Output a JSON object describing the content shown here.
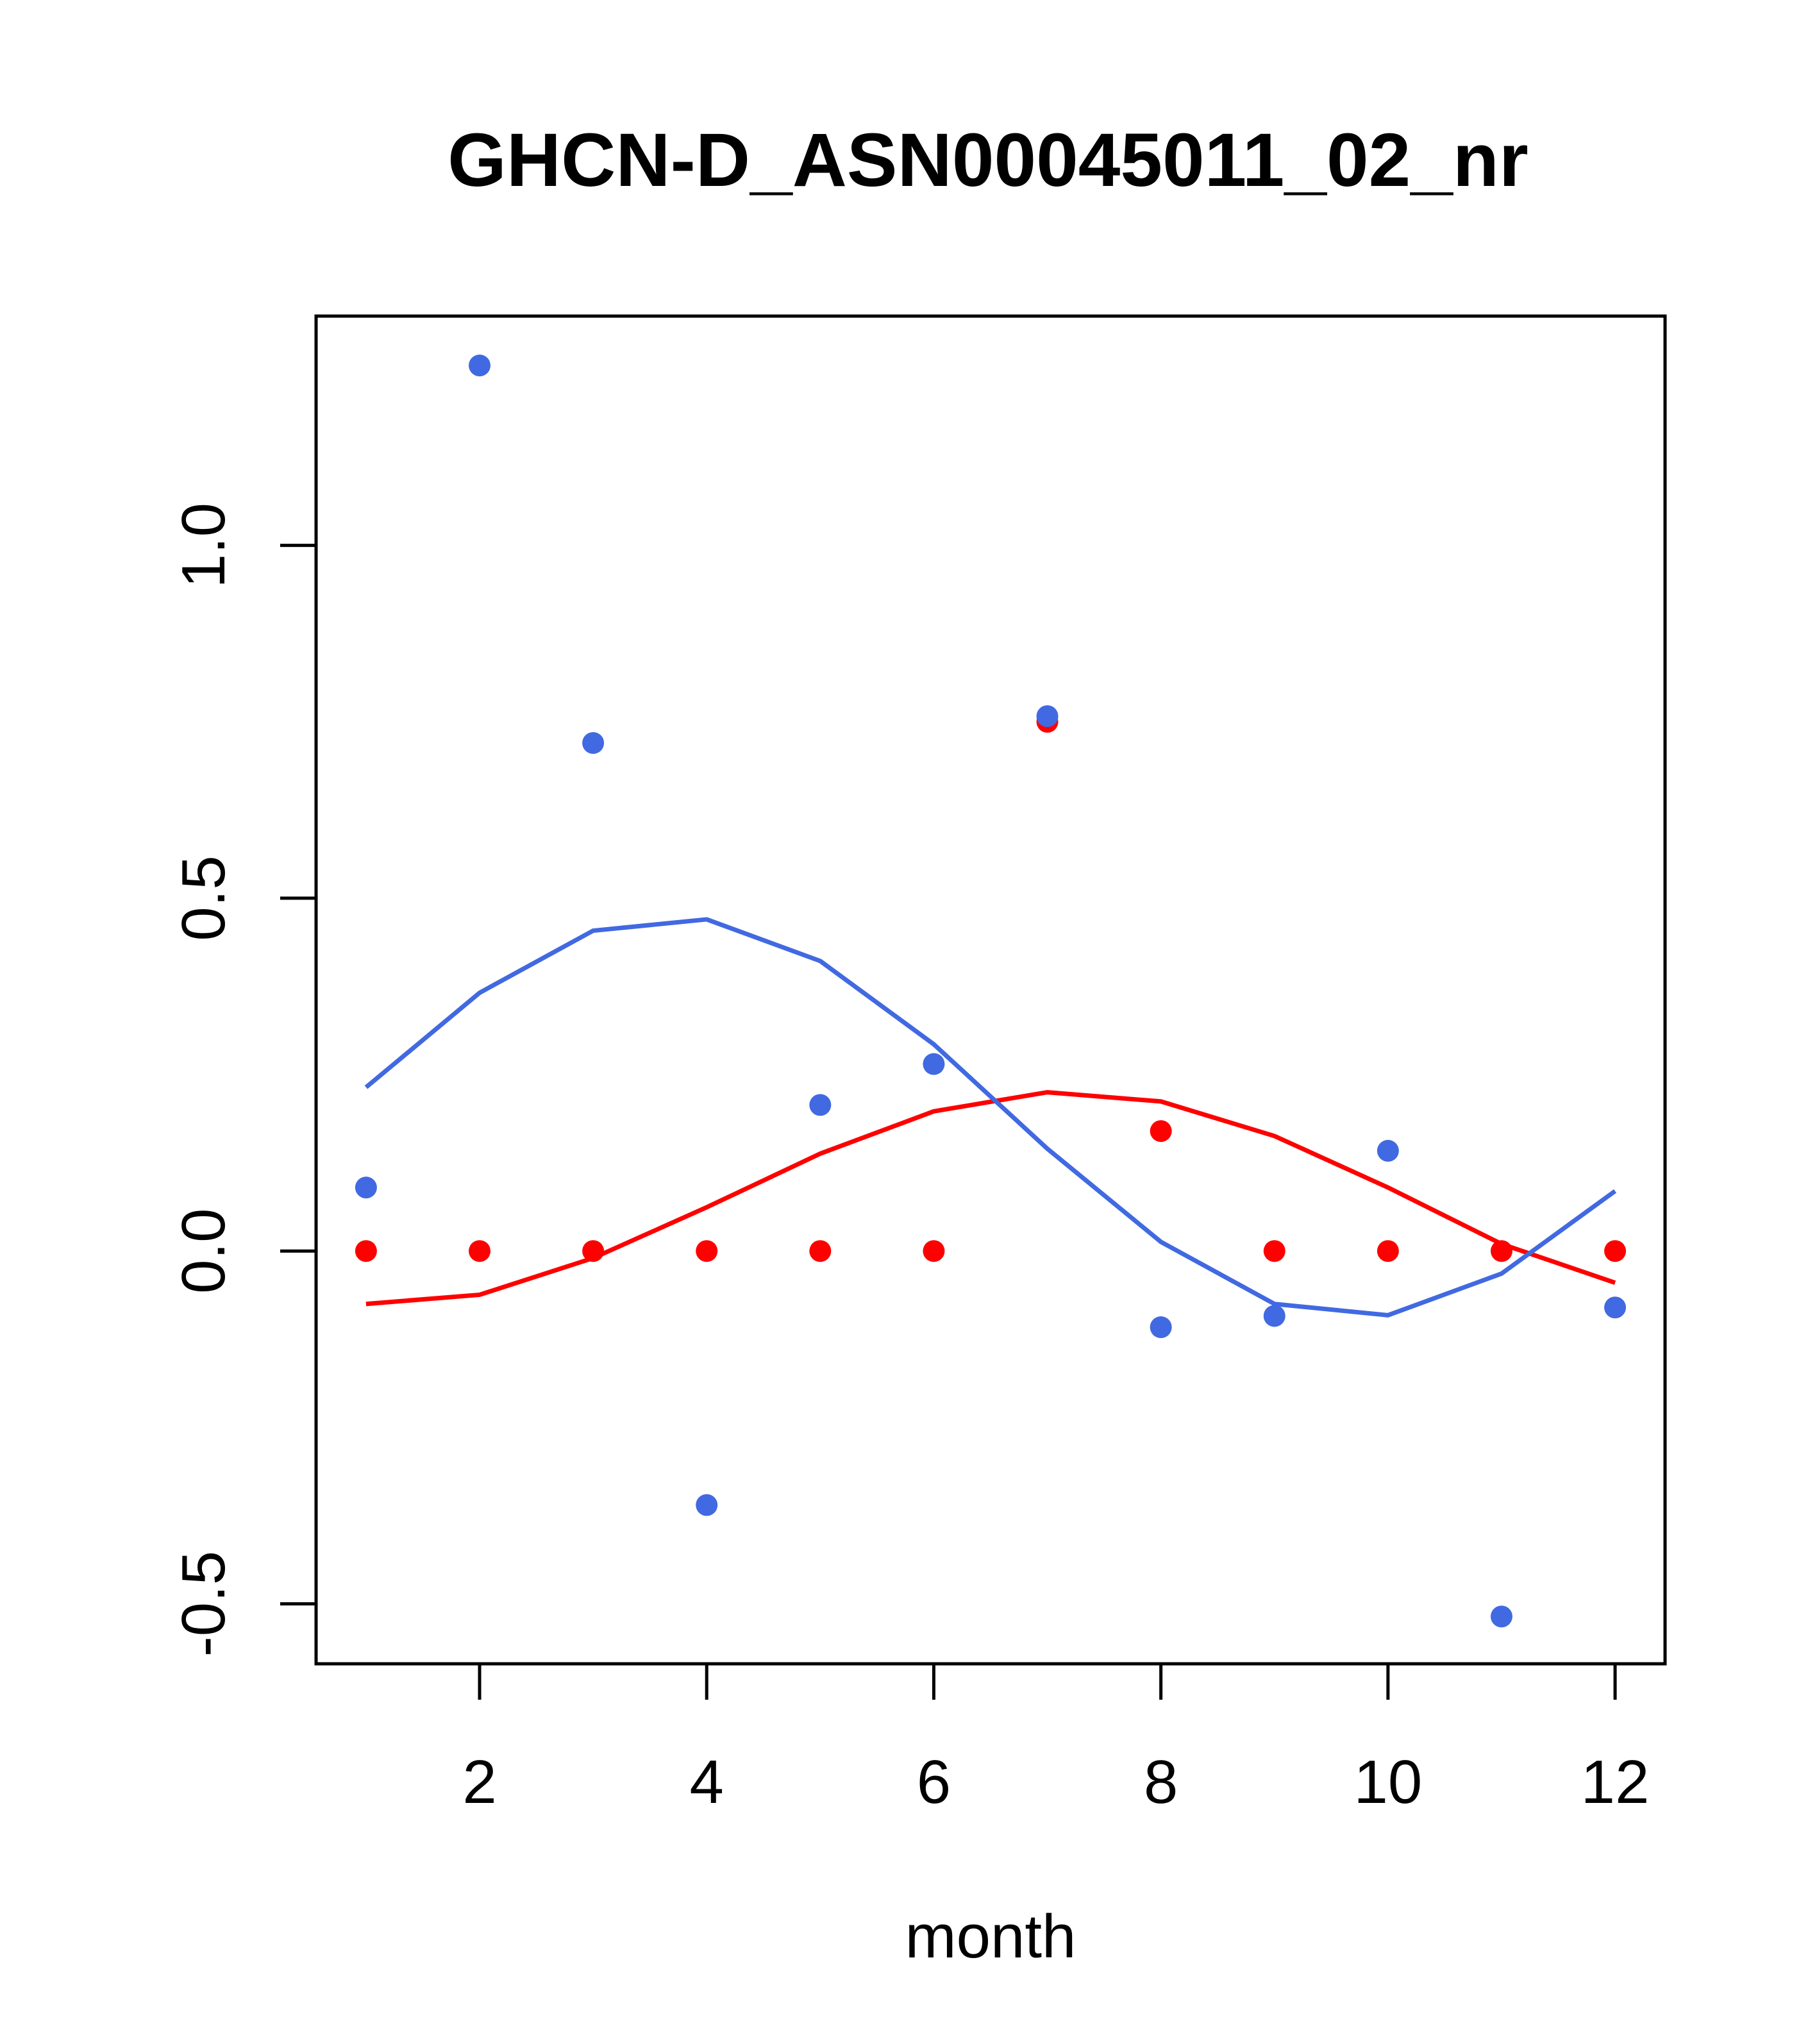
{
  "chart_data": {
    "type": "scatter",
    "title": "GHCN-D_ASN00045011_02_nr",
    "xlabel": "month",
    "ylabel": "",
    "xlim": [
      0.56,
      12.44
    ],
    "ylim": [
      -0.585,
      1.325
    ],
    "x_ticks": [
      2,
      4,
      6,
      8,
      10,
      12
    ],
    "x_tick_labels": [
      "2",
      "4",
      "6",
      "8",
      "10",
      "12"
    ],
    "y_ticks": [
      -0.5,
      0.0,
      0.5,
      1.0
    ],
    "y_tick_labels": [
      "-0.5",
      "0.0",
      "0.5",
      "1.0"
    ],
    "grid": false,
    "legend": "none",
    "x": [
      1,
      2,
      3,
      4,
      5,
      6,
      7,
      8,
      9,
      10,
      11,
      12
    ],
    "series": [
      {
        "color": "#ff0000",
        "points": [
          0.0,
          0.0,
          0.0,
          0.0,
          0.0,
          0.0,
          0.75,
          0.17,
          0.0,
          0.0,
          0.0,
          0.0
        ],
        "line": [
          -0.075,
          -0.062,
          -0.01,
          0.062,
          0.138,
          0.198,
          0.225,
          0.212,
          0.163,
          0.09,
          0.01,
          -0.045
        ]
      },
      {
        "color": "#4169e1",
        "points": [
          0.09,
          1.255,
          0.72,
          -0.36,
          0.207,
          0.265,
          0.758,
          -0.108,
          -0.092,
          0.142,
          -0.518,
          -0.08
        ],
        "line": [
          0.232,
          0.366,
          0.454,
          0.47,
          0.411,
          0.293,
          0.145,
          0.013,
          -0.075,
          -0.091,
          -0.032,
          0.085
        ]
      }
    ]
  }
}
